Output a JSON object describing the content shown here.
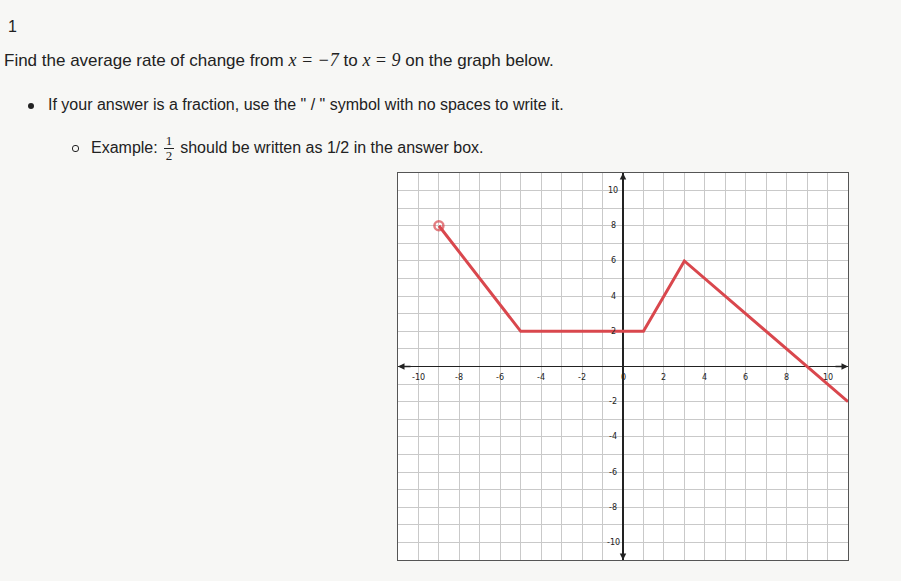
{
  "question": {
    "number": "1",
    "prompt_parts": [
      "Find the average rate of change from ",
      "x = −7",
      " to ",
      "x = 9",
      " on the graph below."
    ],
    "bullet": "If your answer is a fraction, use the \" / \" symbol with no spaces to write it.",
    "example_prefix": "Example:",
    "example_numerator": "1",
    "example_denominator": "2",
    "example_suffix": "should be written as 1/2 in the answer box."
  },
  "chart_data": {
    "type": "line",
    "x": [
      -9,
      -5,
      1,
      3,
      11
    ],
    "values": [
      8,
      2,
      2,
      6,
      -2
    ],
    "color": "#d9474d",
    "marker": "circle-open",
    "xlim": [
      -11,
      11
    ],
    "ylim": [
      -11,
      11
    ],
    "xticks": [
      -10,
      -8,
      -6,
      -4,
      -2,
      0,
      2,
      4,
      6,
      8,
      10
    ],
    "yticks": [
      -10,
      -8,
      -6,
      -4,
      -2,
      2,
      4,
      6,
      8,
      10
    ],
    "grid": true
  }
}
